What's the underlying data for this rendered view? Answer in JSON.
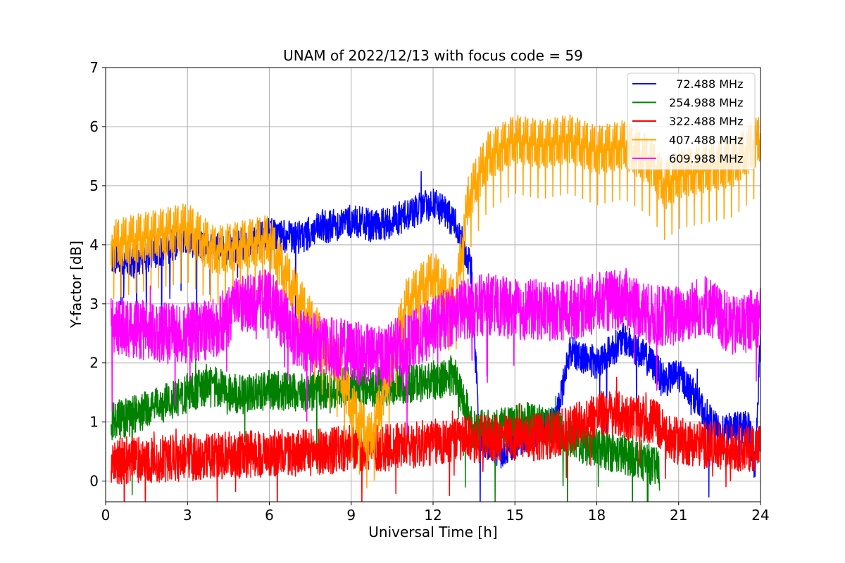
{
  "chart_data": {
    "type": "line",
    "title": "UNAM of 2022/12/13 with focus code = 59",
    "xlabel": "Universal Time [h]",
    "ylabel": "Y-factor [dB]",
    "xlim": [
      0,
      24
    ],
    "ylim": [
      -0.35,
      7
    ],
    "xticks": [
      0,
      3,
      6,
      9,
      12,
      15,
      18,
      21,
      24
    ],
    "yticks": [
      0,
      1,
      2,
      3,
      4,
      5,
      6,
      7
    ],
    "grid": true,
    "legend_position": "top-right",
    "series": [
      {
        "name": "  72.488 MHz",
        "color": "#0000ff",
        "x": [
          0.2,
          1,
          2,
          3,
          4,
          5,
          6,
          7,
          8,
          9,
          10,
          11,
          12,
          12.8,
          13.4,
          13.7,
          14.5,
          15.5,
          16.5,
          17,
          18,
          19,
          20,
          20.5,
          21,
          21.5,
          21.9,
          22.5,
          23,
          23.6,
          23.8,
          24
        ],
        "y": [
          3.8,
          3.7,
          3.9,
          4.1,
          3.9,
          4.0,
          4.2,
          4.1,
          4.3,
          4.4,
          4.3,
          4.5,
          4.7,
          4.4,
          3.6,
          0.7,
          0.5,
          0.8,
          1.0,
          2.2,
          2.0,
          2.4,
          2.0,
          1.7,
          1.8,
          1.5,
          1.2,
          0.8,
          0.9,
          0.9,
          0.2,
          2.5
        ]
      },
      {
        "name": "254.988 MHz",
        "color": "#008000",
        "x": [
          0.2,
          1,
          2,
          3,
          4,
          5,
          6,
          7,
          8,
          9,
          10,
          11,
          12,
          12.8,
          13.5,
          14.5,
          15.5,
          16.5,
          17.5,
          18.5,
          19.5,
          20.3
        ],
        "y": [
          1.0,
          1.1,
          1.3,
          1.5,
          1.6,
          1.45,
          1.55,
          1.5,
          1.55,
          1.6,
          1.6,
          1.65,
          1.7,
          1.8,
          0.85,
          0.9,
          1.0,
          0.9,
          0.6,
          0.5,
          0.4,
          0.2
        ]
      },
      {
        "name": "322.488 MHz",
        "color": "#ff0000",
        "x": [
          0.2,
          1,
          2,
          3,
          4,
          5,
          6,
          7,
          8,
          9,
          10,
          11,
          12,
          13,
          14,
          15,
          16,
          17,
          17.7,
          18.5,
          19.5,
          20.2,
          20.6,
          21.5,
          22.5,
          23.5,
          24
        ],
        "y": [
          0.35,
          0.35,
          0.38,
          0.4,
          0.42,
          0.45,
          0.47,
          0.48,
          0.5,
          0.55,
          0.55,
          0.6,
          0.65,
          0.7,
          0.72,
          0.72,
          0.75,
          0.85,
          1.1,
          1.15,
          1.05,
          1.0,
          0.7,
          0.65,
          0.6,
          0.55,
          0.6
        ]
      },
      {
        "name": "407.488 MHz",
        "color": "#ffa500",
        "x": [
          0.2,
          1,
          2,
          3,
          4,
          5,
          6,
          6.6,
          7.5,
          8.5,
          9,
          9.7,
          10,
          11,
          12,
          12.8,
          13.3,
          14,
          15,
          16,
          17,
          18,
          19,
          20,
          20.5,
          21,
          22,
          23,
          24
        ],
        "y": [
          4.0,
          4.1,
          4.2,
          4.3,
          3.9,
          4.0,
          4.1,
          3.5,
          2.7,
          2.0,
          1.3,
          0.7,
          1.2,
          3.0,
          3.5,
          3.0,
          4.8,
          5.5,
          5.8,
          5.7,
          5.8,
          5.6,
          5.7,
          5.4,
          5.0,
          5.2,
          5.3,
          5.4,
          5.8
        ]
      },
      {
        "name": "609.988 MHz",
        "color": "#ff00ff",
        "x": [
          0.2,
          1,
          2,
          3,
          4,
          5,
          6,
          7,
          8,
          9,
          10,
          11,
          12,
          13,
          14,
          15,
          16,
          17,
          18,
          19,
          20,
          21,
          22,
          23,
          24
        ],
        "y": [
          2.6,
          2.6,
          2.5,
          2.5,
          2.6,
          3.0,
          3.1,
          2.4,
          2.3,
          2.2,
          2.1,
          2.3,
          2.6,
          2.9,
          3.0,
          2.9,
          2.9,
          2.9,
          3.0,
          3.1,
          2.8,
          2.8,
          3.0,
          2.6,
          2.8
        ]
      }
    ]
  }
}
